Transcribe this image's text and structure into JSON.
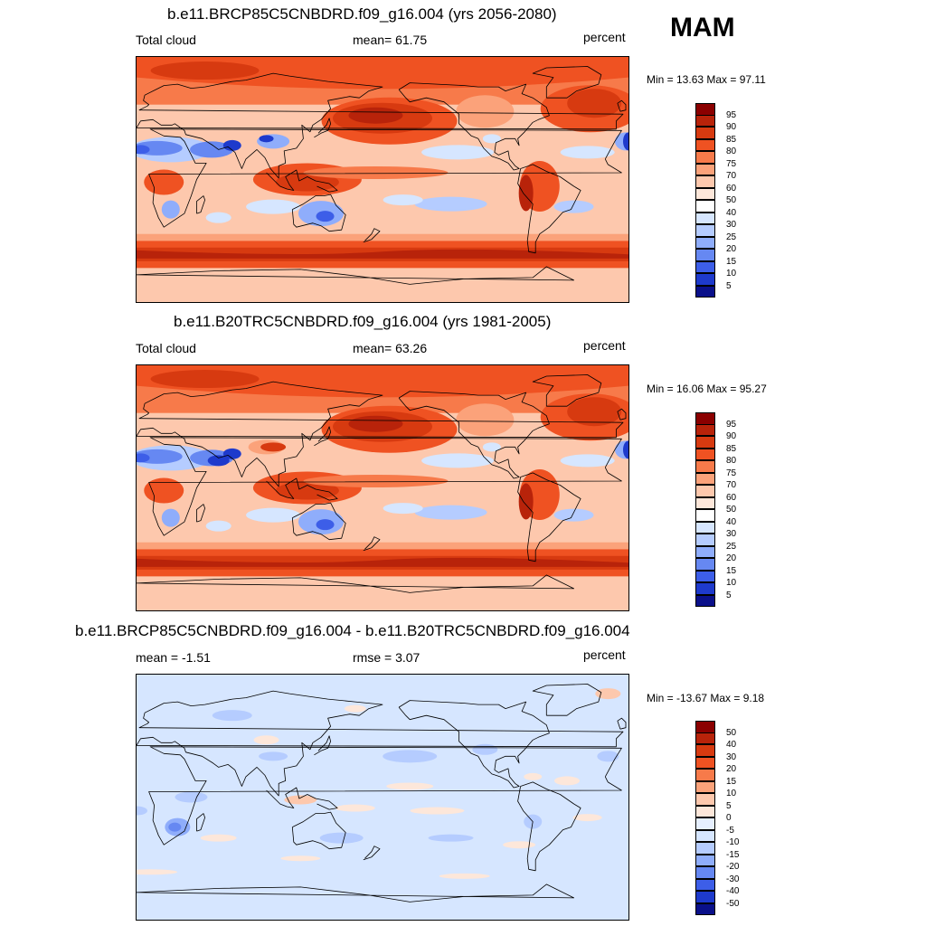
{
  "season": "MAM",
  "panels": [
    {
      "id": "future",
      "title": "b.e11.BRCP85C5CNBDRD.f09_g16.004 (yrs 2056-2080)",
      "left_label": "Total cloud",
      "center_label": "mean=  61.75",
      "right_label": "percent",
      "minmax": "Min =  13.63 Max =  97.11",
      "type": "field",
      "levels": [
        "95",
        "90",
        "85",
        "80",
        "75",
        "70",
        "60",
        "50",
        "40",
        "30",
        "25",
        "20",
        "15",
        "10",
        "5"
      ],
      "colors": [
        "#8b0000",
        "#b8230a",
        "#d73a10",
        "#ef5222",
        "#f77a4a",
        "#fba27a",
        "#fdc8ad",
        "#fde7da",
        "#ffffff",
        "#d6e6ff",
        "#b5ccff",
        "#8fadfb",
        "#6688f2",
        "#3d5ee8",
        "#1e3acc",
        "#0a108a"
      ]
    },
    {
      "id": "historical",
      "title": "b.e11.B20TRC5CNBDRD.f09_g16.004 (yrs 1981-2005)",
      "left_label": "Total cloud",
      "center_label": "mean=  63.26",
      "right_label": "percent",
      "minmax": "Min =  16.06 Max =  95.27",
      "type": "field",
      "levels": [
        "95",
        "90",
        "85",
        "80",
        "75",
        "70",
        "60",
        "50",
        "40",
        "30",
        "25",
        "20",
        "15",
        "10",
        "5"
      ],
      "colors": [
        "#8b0000",
        "#b8230a",
        "#d73a10",
        "#ef5222",
        "#f77a4a",
        "#fba27a",
        "#fdc8ad",
        "#fde7da",
        "#ffffff",
        "#d6e6ff",
        "#b5ccff",
        "#8fadfb",
        "#6688f2",
        "#3d5ee8",
        "#1e3acc",
        "#0a108a"
      ]
    },
    {
      "id": "difference",
      "title": "b.e11.BRCP85C5CNBDRD.f09_g16.004 - b.e11.B20TRC5CNBDRD.f09_g16.004",
      "left_label": "mean =  -1.51",
      "center_label": "rmse =   3.07",
      "right_label": "percent",
      "minmax": "Min = -13.67 Max =   9.18",
      "type": "diff",
      "levels": [
        "50",
        "40",
        "30",
        "20",
        "15",
        "10",
        "5",
        "0",
        "-5",
        "-10",
        "-15",
        "-20",
        "-30",
        "-40",
        "-50"
      ],
      "colors": [
        "#8b0000",
        "#b8230a",
        "#d73a10",
        "#ef5222",
        "#f77a4a",
        "#fba27a",
        "#fdc8ad",
        "#fde7da",
        "#e6efff",
        "#d6e6ff",
        "#b5ccff",
        "#8fadfb",
        "#6688f2",
        "#3d5ee8",
        "#1e3acc",
        "#0a108a"
      ]
    }
  ]
}
